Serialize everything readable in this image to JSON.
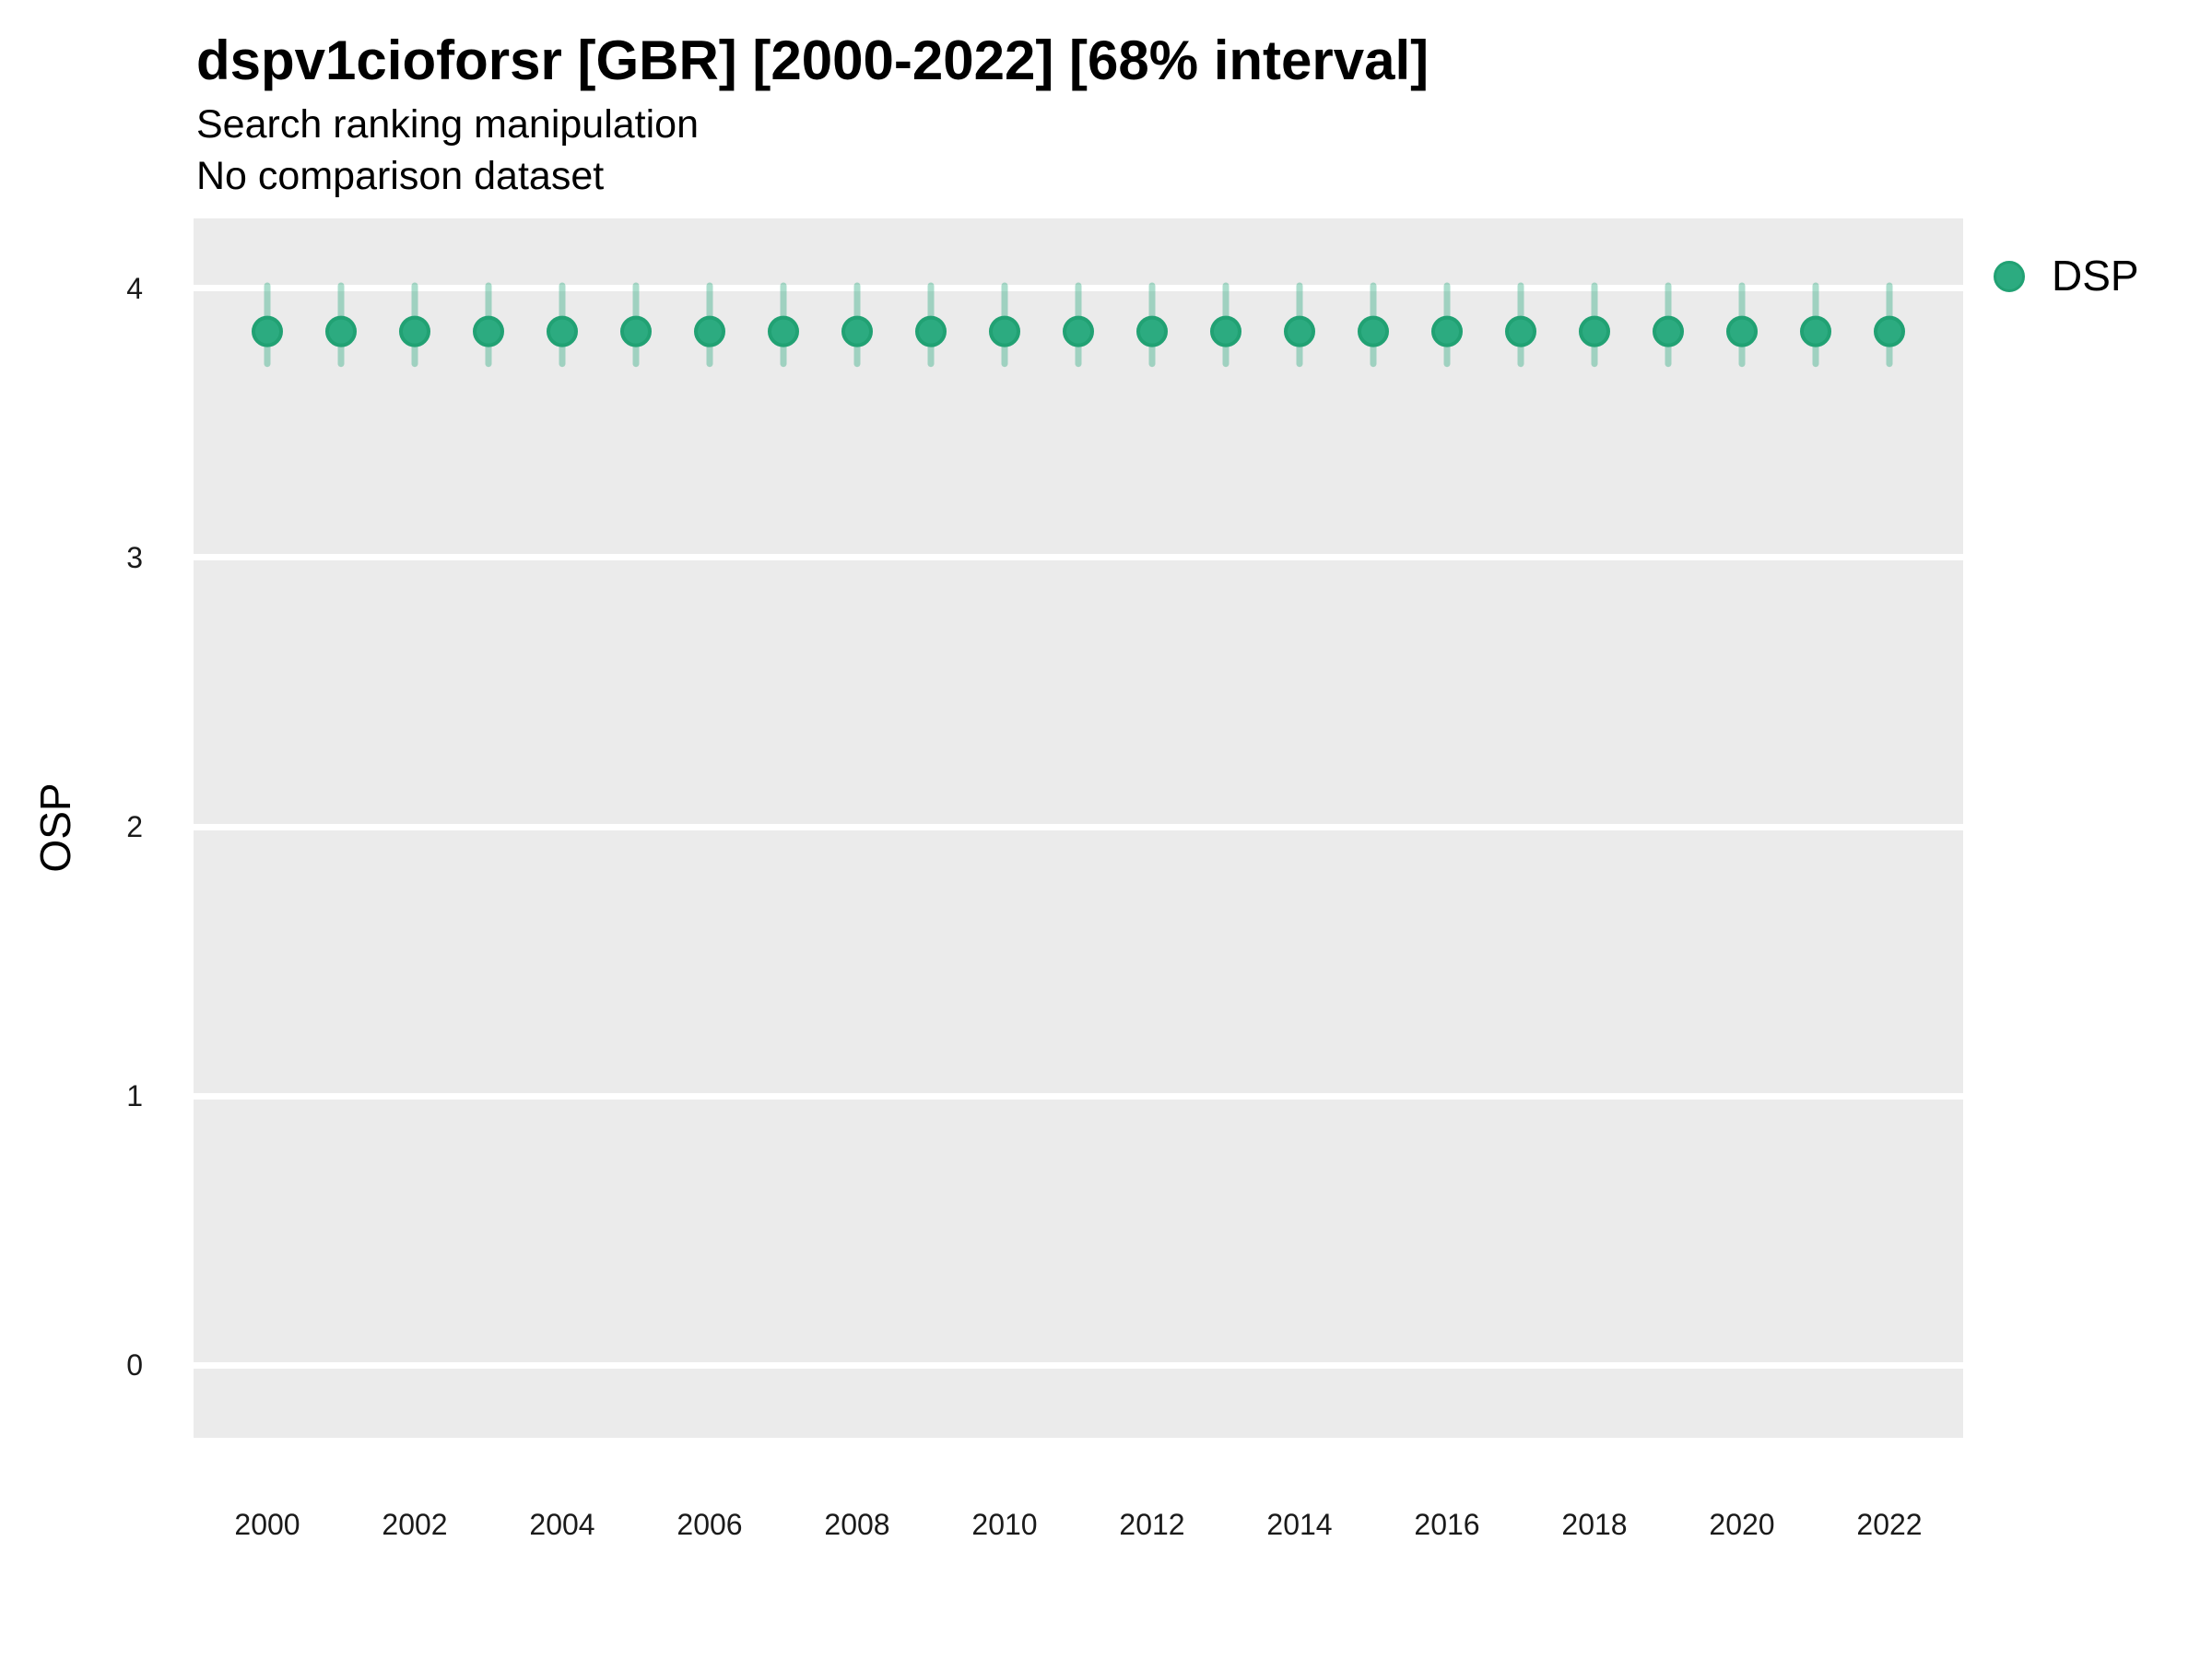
{
  "header": {
    "title": "dspv1cioforsr [GBR] [2000-2022] [68% interval]",
    "subtitle": "Search ranking manipulation",
    "note": "No comparison dataset"
  },
  "legend": {
    "items": [
      {
        "label": "DSP",
        "marker": "circle-icon",
        "color": "#2cab80"
      }
    ]
  },
  "colors": {
    "panel_background": "#ebebeb",
    "gridline": "#ffffff",
    "point_fill": "#2cab80",
    "point_stroke": "#21a173",
    "interval_bar": "rgba(44,171,128,0.40)",
    "text": "#000000",
    "tick_text": "#1a1a1a"
  },
  "chart_data": {
    "type": "scatter",
    "title": "dspv1cioforsr [GBR] [2000-2022] [68% interval]",
    "subtitle": "Search ranking manipulation",
    "note": "No comparison dataset",
    "xlabel": "",
    "ylabel": "OSP",
    "interval": "68%",
    "grid": "major-horizontal white on gray panel",
    "legend_position": "right",
    "xlim": [
      1999,
      2023
    ],
    "ylim": [
      -0.27,
      4.26
    ],
    "x_ticks": [
      2000,
      2002,
      2004,
      2006,
      2008,
      2010,
      2012,
      2014,
      2016,
      2018,
      2020,
      2022
    ],
    "y_ticks": [
      0,
      1,
      2,
      3,
      4
    ],
    "series": [
      {
        "name": "DSP",
        "color": "#2cab80",
        "x": [
          2000,
          2001,
          2002,
          2003,
          2004,
          2005,
          2006,
          2007,
          2008,
          2009,
          2010,
          2011,
          2012,
          2013,
          2014,
          2015,
          2016,
          2017,
          2018,
          2019,
          2020,
          2021,
          2022
        ],
        "y": [
          3.84,
          3.84,
          3.84,
          3.84,
          3.84,
          3.84,
          3.84,
          3.84,
          3.84,
          3.84,
          3.84,
          3.84,
          3.84,
          3.84,
          3.84,
          3.84,
          3.84,
          3.84,
          3.84,
          3.84,
          3.84,
          3.84,
          3.84
        ],
        "y_lo": [
          3.72,
          3.72,
          3.72,
          3.72,
          3.72,
          3.72,
          3.72,
          3.72,
          3.72,
          3.72,
          3.72,
          3.72,
          3.72,
          3.72,
          3.72,
          3.72,
          3.72,
          3.72,
          3.72,
          3.72,
          3.72,
          3.72,
          3.72
        ],
        "y_hi": [
          4.01,
          4.01,
          4.01,
          4.01,
          4.01,
          4.01,
          4.01,
          4.01,
          4.01,
          4.01,
          4.01,
          4.01,
          4.01,
          4.01,
          4.01,
          4.01,
          4.01,
          4.01,
          4.01,
          4.01,
          4.01,
          4.01,
          4.01
        ]
      }
    ]
  }
}
